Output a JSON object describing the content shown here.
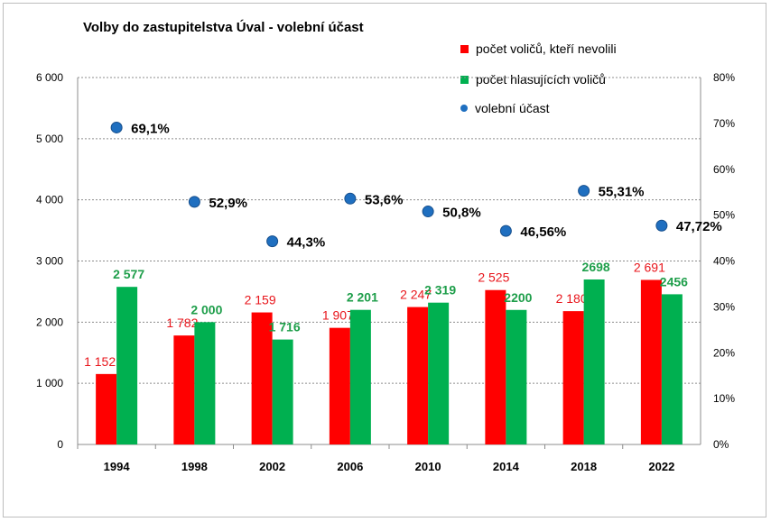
{
  "chart_data": {
    "type": "bar",
    "title": "Volby do zastupitelstva Úval - volební účast",
    "categories": [
      "1994",
      "1998",
      "2002",
      "2006",
      "2010",
      "2014",
      "2018",
      "2022"
    ],
    "series": [
      {
        "name": "počet voličů, kteří nevolili",
        "color": "#ff0000",
        "values": [
          1152,
          1782,
          2159,
          1907,
          2247,
          2525,
          2180,
          2691
        ],
        "labels": [
          "1 152",
          "1 782",
          "2 159",
          "1 907",
          "2 247",
          "2 525",
          "2 180",
          "2 691"
        ]
      },
      {
        "name": "počet hlasujících voličů",
        "color": "#00b050",
        "values": [
          2577,
          2000,
          1716,
          2201,
          2319,
          2200,
          2698,
          2456
        ],
        "labels": [
          "2 577",
          "2 000",
          "1 716",
          "2 201",
          "2 319",
          "2200",
          "2698",
          "2456"
        ]
      },
      {
        "name": "volební účast",
        "type": "scatter",
        "axis": "right",
        "color": "#1f6fc0",
        "values": [
          69.1,
          52.9,
          44.3,
          53.6,
          50.8,
          46.56,
          55.31,
          47.72
        ],
        "labels": [
          "69,1%",
          "52,9%",
          "44,3%",
          "53,6%",
          "50,8%",
          "46,56%",
          "55,31%",
          "47,72%"
        ]
      }
    ],
    "ylim": [
      0,
      6000
    ],
    "y_ticks": [
      "0",
      "1 000",
      "2 000",
      "3 000",
      "4 000",
      "5 000",
      "6 000"
    ],
    "y2lim": [
      0,
      80
    ],
    "y2_ticks": [
      "0%",
      "10%",
      "20%",
      "30%",
      "40%",
      "50%",
      "60%",
      "70%",
      "80%"
    ],
    "grid": true,
    "legend_position": "top-right"
  }
}
